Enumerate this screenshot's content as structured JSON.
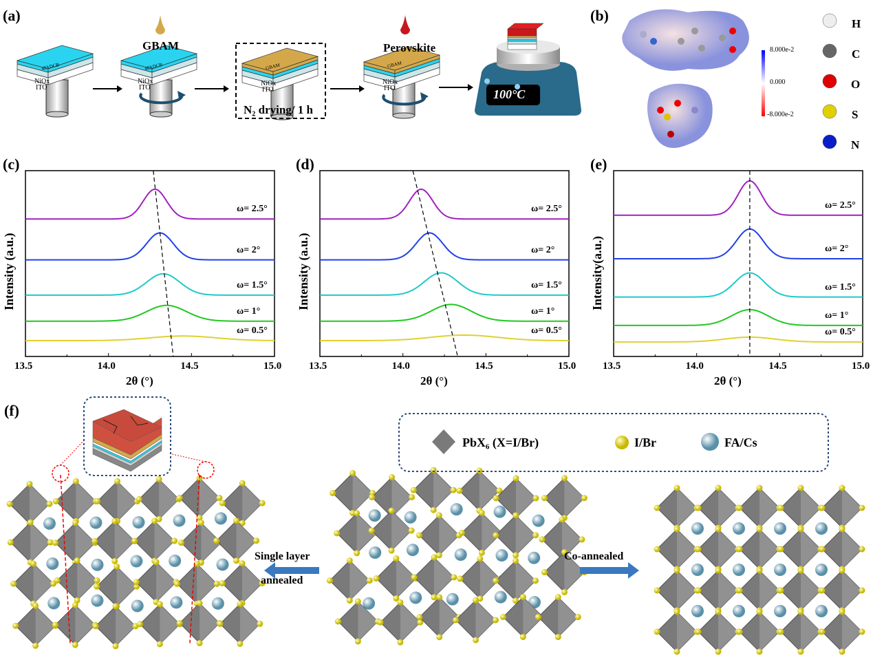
{
  "panel_labels": {
    "a": "(a)",
    "b": "(b)",
    "c": "(c)",
    "d": "(d)",
    "e": "(e)",
    "f": "(f)"
  },
  "panel_a": {
    "layer_4padcb": "4PADCB",
    "layer_niox": "NiOx",
    "layer_ito": "ITO",
    "layer_gbam": "GBAM",
    "drop1_label": "GBAM",
    "drop2_label": "Perovskite",
    "drying_label": "N₂ drying/ 1 h",
    "hotplate_temp": "100°C",
    "colors": {
      "4padcb": "#2ad4f0",
      "gbam": "#d4a84a",
      "perovskite": "#c8181c",
      "hotplate": "#2a6a8a"
    }
  },
  "panel_b": {
    "colorbar_max": "8.000e-2",
    "colorbar_mid": "0.000",
    "colorbar_min": "-8.000e-2",
    "legend": [
      {
        "label": "H",
        "color": "#eeeeee"
      },
      {
        "label": "C",
        "color": "#666666"
      },
      {
        "label": "O",
        "color": "#e00000"
      },
      {
        "label": "S",
        "color": "#e0d000"
      },
      {
        "label": "N",
        "color": "#0a1ec8"
      }
    ]
  },
  "chart_data": [
    {
      "panel": "c",
      "type": "line",
      "xlabel": "2θ (°)",
      "ylabel": "Intensity (a.u.)",
      "xlim": [
        13.5,
        15.0
      ],
      "ylim": [
        0,
        100
      ],
      "xticks": [
        "13.5",
        "14.0",
        "14.5",
        "15.0"
      ],
      "guide_line": {
        "style": "dashed",
        "from": [
          14.27,
          100
        ],
        "to": [
          14.39,
          0
        ]
      },
      "series": [
        {
          "name": "ω= 2.5°",
          "color": "#a020c0",
          "baseline": 74,
          "peak_center": 14.28,
          "peak_height": 16,
          "peak_width": 0.07
        },
        {
          "name": "ω= 2°",
          "color": "#2040e8",
          "baseline": 52,
          "peak_center": 14.31,
          "peak_height": 14.5,
          "peak_width": 0.08
        },
        {
          "name": "ω= 1.5°",
          "color": "#20c8c8",
          "baseline": 33,
          "peak_center": 14.33,
          "peak_height": 11.5,
          "peak_width": 0.1
        },
        {
          "name": "ω= 1°",
          "color": "#20c820",
          "baseline": 19,
          "peak_center": 14.35,
          "peak_height": 8.5,
          "peak_width": 0.12
        },
        {
          "name": "ω= 0.5°",
          "color": "#e0d030",
          "baseline": 8.5,
          "peak_center": 14.45,
          "peak_height": 2.5,
          "peak_width": 0.2
        }
      ]
    },
    {
      "panel": "d",
      "type": "line",
      "xlabel": "2θ (°)",
      "ylabel": "Intensity (a.u.)",
      "xlim": [
        13.5,
        15.0
      ],
      "ylim": [
        0,
        100
      ],
      "xticks": [
        "13.5",
        "14.0",
        "14.5",
        "15.0"
      ],
      "guide_line": {
        "style": "dashed",
        "from": [
          14.06,
          100
        ],
        "to": [
          14.33,
          0
        ]
      },
      "series": [
        {
          "name": "ω= 2.5°",
          "color": "#a020c0",
          "baseline": 74,
          "peak_center": 14.11,
          "peak_height": 16,
          "peak_width": 0.07
        },
        {
          "name": "ω= 2°",
          "color": "#2040e8",
          "baseline": 52,
          "peak_center": 14.16,
          "peak_height": 14.5,
          "peak_width": 0.08
        },
        {
          "name": "ω= 1.5°",
          "color": "#20c8c8",
          "baseline": 33,
          "peak_center": 14.23,
          "peak_height": 12,
          "peak_width": 0.1
        },
        {
          "name": "ω= 1°",
          "color": "#20c820",
          "baseline": 19,
          "peak_center": 14.29,
          "peak_height": 9,
          "peak_width": 0.12
        },
        {
          "name": "ω= 0.5°",
          "color": "#e0d030",
          "baseline": 8.5,
          "peak_center": 14.37,
          "peak_height": 3,
          "peak_width": 0.2
        }
      ]
    },
    {
      "panel": "e",
      "type": "line",
      "xlabel": "2θ (°)",
      "ylabel": "Intensity(a.u.)",
      "xlim": [
        13.5,
        15.0
      ],
      "ylim": [
        0,
        100
      ],
      "xticks": [
        "13.5",
        "14.0",
        "14.5",
        "15.0"
      ],
      "guide_line": {
        "style": "dashed",
        "from": [
          14.32,
          100
        ],
        "to": [
          14.32,
          0
        ]
      },
      "series": [
        {
          "name": "ω= 2.5°",
          "color": "#a020c0",
          "baseline": 76,
          "peak_center": 14.32,
          "peak_height": 18.5,
          "peak_width": 0.07
        },
        {
          "name": "ω= 2°",
          "color": "#2040e8",
          "baseline": 52.6,
          "peak_center": 14.32,
          "peak_height": 16,
          "peak_width": 0.08
        },
        {
          "name": "ω= 1.5°",
          "color": "#20c8c8",
          "baseline": 32,
          "peak_center": 14.32,
          "peak_height": 13,
          "peak_width": 0.09
        },
        {
          "name": "ω= 1°",
          "color": "#20c820",
          "baseline": 16.7,
          "peak_center": 14.32,
          "peak_height": 8.5,
          "peak_width": 0.11
        },
        {
          "name": "ω= 0.5°",
          "color": "#e0d030",
          "baseline": 7.8,
          "peak_center": 14.32,
          "peak_height": 2.6,
          "peak_width": 0.15
        }
      ]
    }
  ],
  "panel_f": {
    "legend_pbx6": "PbX₆ (X=I/Br)",
    "legend_ibr": "I/Br",
    "legend_facs": "FA/Cs",
    "arrow_left_line1": "Single layer",
    "arrow_left_line2": "annealed",
    "arrow_right": "Co-annealed",
    "colors": {
      "octahedron": "#7a7a7a",
      "halide": "#f0e800",
      "cation": "#a8d0e0",
      "arrow": "#3a78c0"
    }
  }
}
